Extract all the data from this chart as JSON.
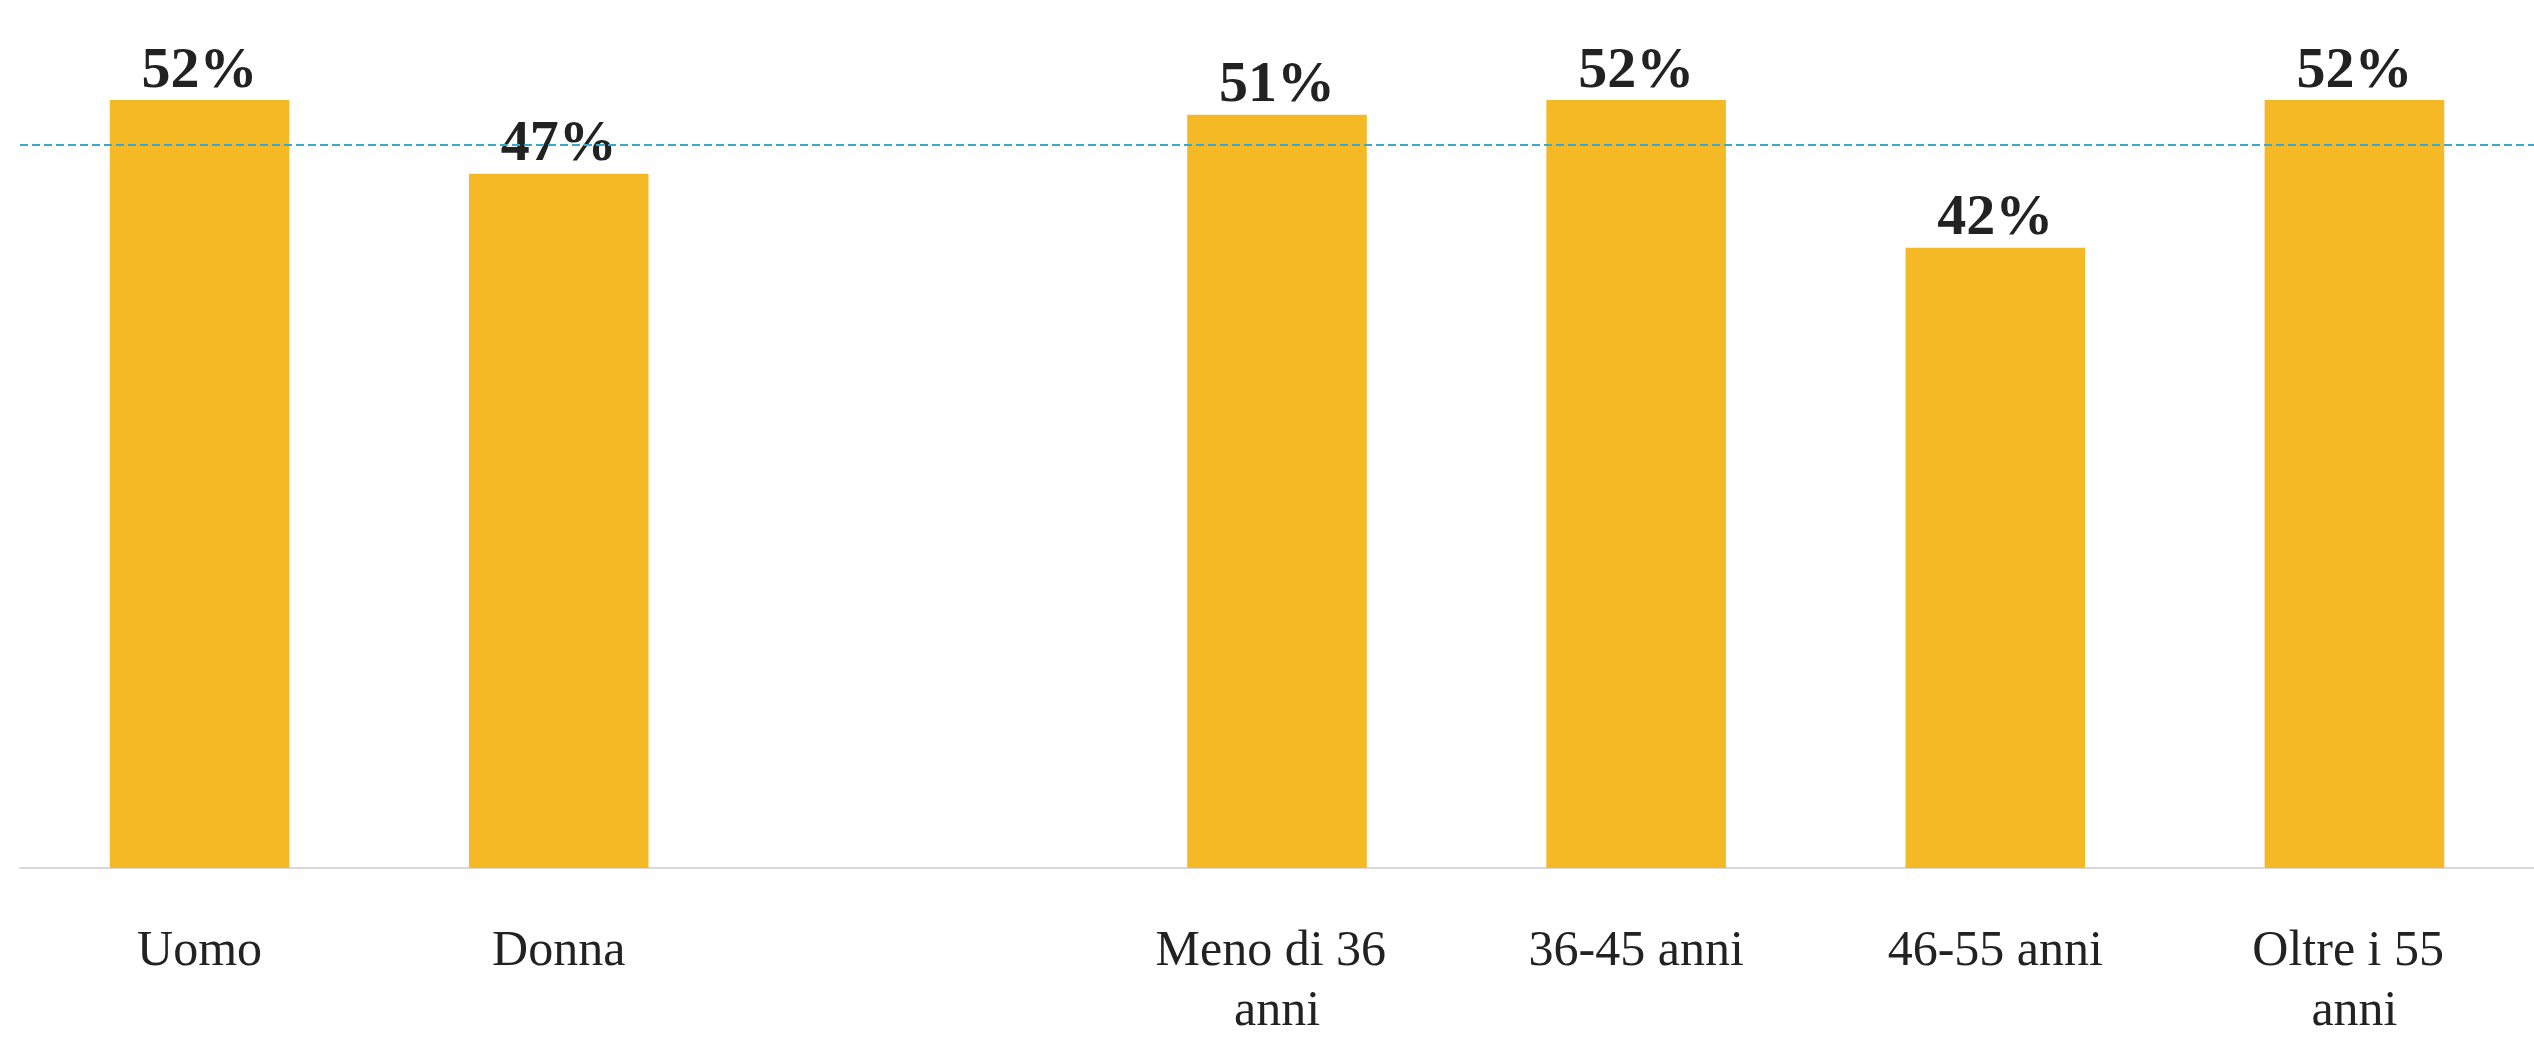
{
  "chart_data": {
    "type": "bar",
    "categories": [
      "Uomo",
      "Donna",
      null,
      "Meno di 36 anni",
      "36-45 anni",
      "46-55 anni",
      "Oltre i 55 anni"
    ],
    "values": [
      52,
      47,
      null,
      51,
      52,
      42,
      52
    ],
    "color": "#f5b926",
    "data_labels": true,
    "value_labels": [
      "52%",
      "47%",
      null,
      "51%",
      "52%",
      "42%",
      "52%"
    ],
    "ref_lines": [
      {
        "axis": "y",
        "value": 49,
        "color": "#3aa8c8",
        "line_style": "dashed"
      }
    ],
    "grid": false
  }
}
